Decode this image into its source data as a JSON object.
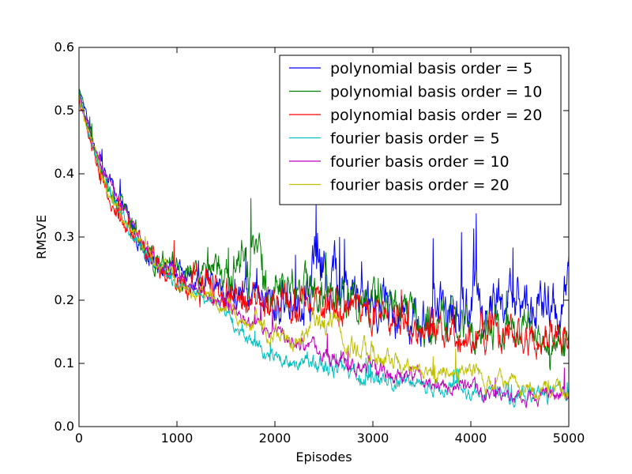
{
  "chart_data": {
    "type": "line",
    "xlabel": "Episodes",
    "ylabel": "RMSVE",
    "xlim": [
      0,
      5000
    ],
    "ylim": [
      0.0,
      0.6
    ],
    "xticks": [
      "0",
      "1000",
      "2000",
      "3000",
      "4000",
      "5000"
    ],
    "yticks": [
      "0.0",
      "0.1",
      "0.2",
      "0.3",
      "0.4",
      "0.5",
      "0.6"
    ],
    "grid": false,
    "legend_position": "top-right",
    "series": [
      {
        "name": "polynomial basis order = 5",
        "color": "#0000ff",
        "x": [
          0,
          100,
          200,
          300,
          400,
          500,
          600,
          700,
          800,
          900,
          1000,
          1200,
          1400,
          1600,
          1800,
          2000,
          2200,
          2400,
          2600,
          2800,
          3000,
          3200,
          3400,
          3600,
          3800,
          4000,
          4200,
          4400,
          4600,
          4800,
          5000
        ],
        "y": [
          0.53,
          0.48,
          0.43,
          0.39,
          0.36,
          0.33,
          0.3,
          0.28,
          0.26,
          0.25,
          0.24,
          0.23,
          0.22,
          0.21,
          0.2,
          0.19,
          0.21,
          0.26,
          0.24,
          0.22,
          0.2,
          0.19,
          0.18,
          0.17,
          0.18,
          0.2,
          0.19,
          0.2,
          0.19,
          0.18,
          0.2
        ],
        "amplitude": [
          0.008,
          0.01,
          0.012,
          0.015,
          0.015,
          0.016,
          0.016,
          0.016,
          0.016,
          0.015,
          0.016,
          0.016,
          0.02,
          0.025,
          0.03,
          0.035,
          0.045,
          0.06,
          0.05,
          0.045,
          0.04,
          0.04,
          0.04,
          0.04,
          0.045,
          0.045,
          0.045,
          0.045,
          0.045,
          0.045,
          0.045
        ]
      },
      {
        "name": "polynomial basis order = 10",
        "color": "#008000",
        "x": [
          0,
          100,
          200,
          300,
          400,
          500,
          600,
          700,
          800,
          900,
          1000,
          1200,
          1400,
          1600,
          1800,
          2000,
          2200,
          2400,
          2600,
          2800,
          3000,
          3200,
          3400,
          3600,
          3800,
          4000,
          4200,
          4400,
          4600,
          4800,
          5000
        ],
        "y": [
          0.53,
          0.47,
          0.42,
          0.38,
          0.35,
          0.32,
          0.3,
          0.28,
          0.27,
          0.26,
          0.25,
          0.24,
          0.24,
          0.26,
          0.24,
          0.23,
          0.22,
          0.22,
          0.21,
          0.2,
          0.19,
          0.19,
          0.18,
          0.17,
          0.17,
          0.16,
          0.16,
          0.15,
          0.15,
          0.14,
          0.14
        ],
        "amplitude": [
          0.008,
          0.01,
          0.012,
          0.014,
          0.015,
          0.018,
          0.02,
          0.022,
          0.025,
          0.02,
          0.02,
          0.025,
          0.03,
          0.04,
          0.04,
          0.04,
          0.035,
          0.035,
          0.035,
          0.035,
          0.035,
          0.035,
          0.035,
          0.035,
          0.03,
          0.03,
          0.03,
          0.028,
          0.028,
          0.028,
          0.028
        ]
      },
      {
        "name": "polynomial basis order = 20",
        "color": "#ff0000",
        "x": [
          0,
          100,
          200,
          300,
          400,
          500,
          600,
          700,
          800,
          900,
          1000,
          1200,
          1400,
          1600,
          1800,
          2000,
          2200,
          2400,
          2600,
          2800,
          3000,
          3200,
          3400,
          3600,
          3800,
          4000,
          4200,
          4400,
          4600,
          4800,
          5000
        ],
        "y": [
          0.52,
          0.46,
          0.41,
          0.37,
          0.34,
          0.31,
          0.29,
          0.27,
          0.26,
          0.25,
          0.24,
          0.23,
          0.22,
          0.21,
          0.2,
          0.2,
          0.19,
          0.2,
          0.2,
          0.19,
          0.18,
          0.17,
          0.16,
          0.16,
          0.15,
          0.15,
          0.15,
          0.15,
          0.14,
          0.14,
          0.14
        ],
        "amplitude": [
          0.008,
          0.012,
          0.014,
          0.015,
          0.016,
          0.016,
          0.016,
          0.02,
          0.022,
          0.022,
          0.025,
          0.03,
          0.03,
          0.03,
          0.025,
          0.025,
          0.025,
          0.03,
          0.03,
          0.028,
          0.025,
          0.025,
          0.025,
          0.025,
          0.028,
          0.028,
          0.03,
          0.03,
          0.03,
          0.03,
          0.03
        ]
      },
      {
        "name": "fourier basis order = 5",
        "color": "#00bfbf",
        "x": [
          0,
          100,
          200,
          300,
          400,
          500,
          600,
          700,
          800,
          900,
          1000,
          1200,
          1400,
          1600,
          1800,
          2000,
          2200,
          2400,
          2600,
          2800,
          3000,
          3200,
          3400,
          3600,
          3800,
          4000,
          4200,
          4400,
          4600,
          4800,
          5000
        ],
        "y": [
          0.53,
          0.47,
          0.42,
          0.38,
          0.35,
          0.32,
          0.29,
          0.27,
          0.25,
          0.24,
          0.23,
          0.21,
          0.2,
          0.16,
          0.13,
          0.11,
          0.1,
          0.1,
          0.09,
          0.08,
          0.08,
          0.07,
          0.07,
          0.06,
          0.06,
          0.05,
          0.05,
          0.05,
          0.05,
          0.05,
          0.05
        ],
        "amplitude": [
          0.006,
          0.008,
          0.01,
          0.01,
          0.01,
          0.01,
          0.01,
          0.01,
          0.01,
          0.01,
          0.01,
          0.01,
          0.01,
          0.012,
          0.012,
          0.012,
          0.012,
          0.015,
          0.015,
          0.015,
          0.015,
          0.015,
          0.015,
          0.012,
          0.012,
          0.012,
          0.012,
          0.015,
          0.015,
          0.015,
          0.015
        ]
      },
      {
        "name": "fourier basis order = 10",
        "color": "#bf00bf",
        "x": [
          0,
          100,
          200,
          300,
          400,
          500,
          600,
          700,
          800,
          900,
          1000,
          1200,
          1400,
          1600,
          1800,
          2000,
          2200,
          2400,
          2600,
          2800,
          3000,
          3200,
          3400,
          3600,
          3800,
          4000,
          4200,
          4400,
          4600,
          4800,
          5000
        ],
        "y": [
          0.52,
          0.47,
          0.42,
          0.39,
          0.36,
          0.33,
          0.3,
          0.28,
          0.26,
          0.25,
          0.24,
          0.22,
          0.2,
          0.18,
          0.16,
          0.15,
          0.13,
          0.12,
          0.11,
          0.1,
          0.09,
          0.08,
          0.08,
          0.07,
          0.06,
          0.06,
          0.05,
          0.05,
          0.05,
          0.05,
          0.05
        ],
        "amplitude": [
          0.006,
          0.008,
          0.01,
          0.012,
          0.012,
          0.01,
          0.01,
          0.01,
          0.01,
          0.01,
          0.01,
          0.01,
          0.012,
          0.012,
          0.012,
          0.012,
          0.012,
          0.012,
          0.015,
          0.015,
          0.015,
          0.012,
          0.012,
          0.012,
          0.012,
          0.012,
          0.012,
          0.012,
          0.012,
          0.012,
          0.012
        ]
      },
      {
        "name": "fourier basis order = 20",
        "color": "#bfbf00",
        "x": [
          0,
          100,
          200,
          300,
          400,
          500,
          600,
          700,
          800,
          900,
          1000,
          1200,
          1400,
          1600,
          1800,
          2000,
          2200,
          2400,
          2600,
          2800,
          3000,
          3200,
          3400,
          3600,
          3800,
          4000,
          4200,
          4400,
          4600,
          4800,
          5000
        ],
        "y": [
          0.52,
          0.46,
          0.41,
          0.37,
          0.34,
          0.32,
          0.3,
          0.28,
          0.26,
          0.25,
          0.23,
          0.21,
          0.2,
          0.18,
          0.16,
          0.14,
          0.13,
          0.16,
          0.16,
          0.12,
          0.12,
          0.1,
          0.09,
          0.09,
          0.08,
          0.08,
          0.07,
          0.07,
          0.06,
          0.06,
          0.05
        ],
        "amplitude": [
          0.006,
          0.008,
          0.01,
          0.01,
          0.01,
          0.01,
          0.01,
          0.01,
          0.01,
          0.01,
          0.01,
          0.012,
          0.012,
          0.015,
          0.015,
          0.015,
          0.015,
          0.02,
          0.02,
          0.02,
          0.018,
          0.015,
          0.015,
          0.015,
          0.015,
          0.015,
          0.015,
          0.015,
          0.015,
          0.015,
          0.015
        ]
      }
    ]
  }
}
